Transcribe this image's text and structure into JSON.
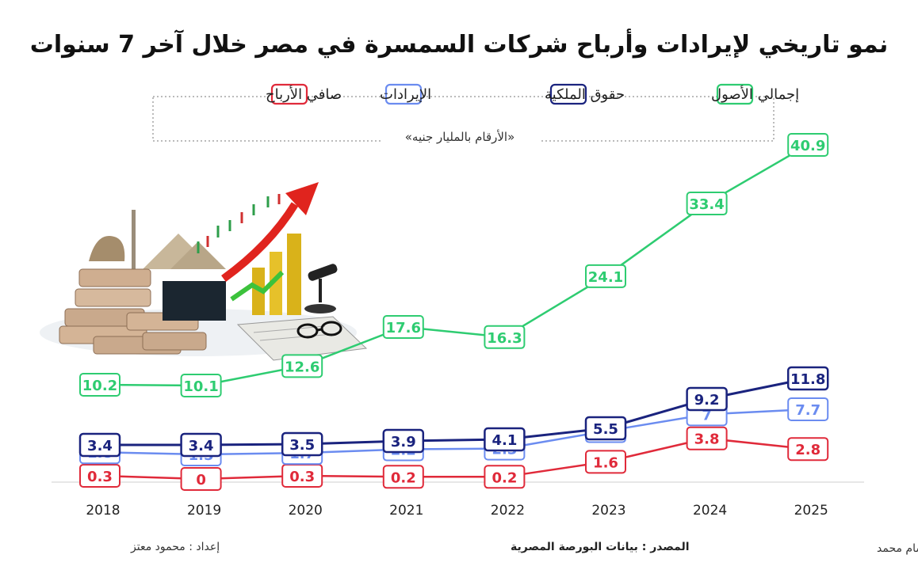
{
  "title": "نمو تاريخي لإيرادات وأرباح شركات السمسرة في مصر خلال آخر 7 سنوات",
  "unit_note": "«الأرقام بالمليار جنيه»",
  "footer": {
    "prepared_by": "إعداد : محمود معتز",
    "source": "المصدر : بيانات البورصة المصرية",
    "design_by": "تنفيذ : حسام محمد"
  },
  "colors": {
    "assets": "#2ecc71",
    "equity": "#1a237e",
    "revenue": "#6b8cf0",
    "profit": "#e02a3a",
    "axis": "#999999"
  },
  "chart_data": {
    "type": "line",
    "x": [
      "2018",
      "2019",
      "2020",
      "2021",
      "2022",
      "2023",
      "2024",
      "2025"
    ],
    "series": [
      {
        "name": "إجمالي الأصول",
        "key": "assets",
        "values": [
          10.2,
          10.1,
          12.6,
          17.6,
          16.3,
          24.1,
          33.4,
          40.9
        ]
      },
      {
        "name": "حقوق الملكية",
        "key": "equity",
        "values": [
          3.4,
          3.4,
          3.5,
          3.9,
          4.1,
          5.5,
          9.2,
          11.8
        ]
      },
      {
        "name": "الإيرادات",
        "key": "revenue",
        "values": [
          1.8,
          1.5,
          1.7,
          2.2,
          2.3,
          4.7,
          7,
          7.7
        ]
      },
      {
        "name": "صافي الأرباح",
        "key": "profit",
        "values": [
          0.3,
          0,
          0.3,
          0.2,
          0.2,
          1.6,
          3.8,
          2.8
        ]
      }
    ],
    "legend_position": "top",
    "grid": false
  }
}
